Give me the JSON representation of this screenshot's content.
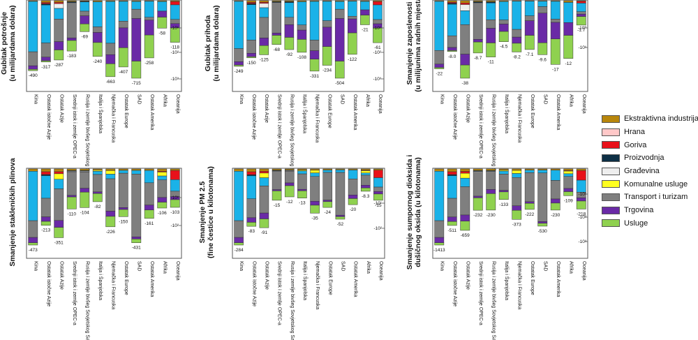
{
  "sector_colors": {
    "Ekstraktivna industrija": "#b8860b",
    "Hrana": "#ffc8c8",
    "Goriva": "#e8111a",
    "Proizvodnja": "#0d2f45",
    "Građevina": "#eeeeee",
    "Komunalne usluge": "#ffff1f",
    "Transport i turizam": "#7f7f7f",
    "Trgovina": "#6a2aa6",
    "Usluge": "#8fd14f",
    "Other": "#1ab2e8"
  },
  "legend": {
    "items": [
      {
        "label": "Ekstraktivna industrija",
        "color": "#b8860b"
      },
      {
        "label": "Hrana",
        "color": "#ffc8c8"
      },
      {
        "label": "Goriva",
        "color": "#e8111a"
      },
      {
        "label": "Proizvodnja",
        "color": "#0d2f45"
      },
      {
        "label": "Građevina",
        "color": "#eeeeee"
      },
      {
        "label": "Komunalne usluge",
        "color": "#ffff1f"
      },
      {
        "label": "Transport i turizam",
        "color": "#7f7f7f"
      },
      {
        "label": "Trgovina",
        "color": "#6a2aa6"
      },
      {
        "label": "Usluge",
        "color": "#8fd14f"
      }
    ]
  },
  "chart_data": [
    {
      "type": "bar",
      "stacked": true,
      "ylabel": "Gubitak potrošnje\n(u milijardama dolara)",
      "ytick_labels": [
        "-10¹",
        "-10²",
        "-10³"
      ],
      "categories": [
        "Kina",
        "Ostatak istočne Azije",
        "Ostatak Azije",
        "Srednji istok i zemlje OPEC-a",
        "Rusija i zemlje bivšeg Sovjetskog Saveza",
        "Italija i Španjolska",
        "Njemačka i Francuska",
        "Ostatak Europe",
        "SAD",
        "Ostatak Amerika",
        "Afrika",
        "Oceanija"
      ],
      "totals": [
        -490,
        -317,
        -287,
        -183,
        -69,
        -240,
        -663,
        -407,
        -715,
        -258,
        -58,
        -118
      ],
      "total_labels": [
        "-490",
        "-317",
        "-287",
        "-183",
        "-69",
        "-240",
        "-663",
        "-407",
        "-715",
        "-258",
        "-58",
        "-118"
      ]
    },
    {
      "type": "bar",
      "stacked": true,
      "ylabel": "Gubitak prihoda\n(u milijardama dolara)",
      "ytick_labels": [
        "-10¹",
        "-10²",
        "-10³"
      ],
      "categories": [
        "Kina",
        "Ostatak istočne Azije",
        "Ostatak Azije",
        "Srednji istok i zemlje OPEC-a",
        "Rusija i zemlje bivšeg Sovjetskog Saveza",
        "Italija i Španjolska",
        "Njemačka i Francuska",
        "Ostatak Europe",
        "SAD",
        "Ostatak Amerika",
        "Afrika",
        "Oceanija"
      ],
      "totals": [
        -249,
        -150,
        -125,
        -68,
        -92,
        -108,
        -331,
        -234,
        -504,
        -122,
        -21,
        -61
      ],
      "total_labels": [
        "-249",
        "-150",
        "-125",
        "-68",
        "-92",
        "-108",
        "-331",
        "-234",
        "-504",
        "-122",
        "-21",
        "-61"
      ]
    },
    {
      "type": "bar",
      "stacked": true,
      "ylabel": "Smanjenje zaposlenosti\n(u milijunima radnih mjesta)",
      "ytick_labels": [
        "-10⁰",
        "-10¹"
      ],
      "categories": [
        "Kina",
        "Ostatak istočne Azije",
        "Ostatak Azije",
        "Srednji istok i zemlje OPEC-a",
        "Rusija i zemlje bivšeg Sovjetskog Saveza",
        "Italija i Španjolska",
        "Njemačka i Francuska",
        "Ostatak Europe",
        "SAD",
        "Ostatak Amerika",
        "Afrika",
        "Oceanija"
      ],
      "totals": [
        -22,
        -8.0,
        -38,
        -8.7,
        -11,
        -4.5,
        -8.2,
        -7.1,
        -9.6,
        -17,
        -12,
        -1.7
      ],
      "total_labels": [
        "-22",
        "-8.0",
        "-38",
        "-8.7",
        "-11",
        "-4.5",
        "-8.2",
        "-7.1",
        "-9.6",
        "-17",
        "-12",
        "-1.7"
      ]
    },
    {
      "type": "bar",
      "stacked": true,
      "ylabel": "Smanjenje stakleničkih plinova",
      "ytick_labels": [
        "-10¹",
        "-10²"
      ],
      "categories": [
        "Kina",
        "Ostatak istočne Azije",
        "Ostatak Azije",
        "Srednji istok i zemlje OPEC-a",
        "Rusija i zemlje bivšeg Sovjetskog Saveza",
        "Italija i Španjolska",
        "Njemačka i Francuska",
        "Ostatak Europe",
        "SAD",
        "Ostatak Amerika",
        "Afrika",
        "Oceanija"
      ],
      "totals": [
        -473,
        -213,
        -351,
        -110,
        -104,
        -82,
        -226,
        -150,
        -431,
        -161,
        -106,
        -103
      ],
      "total_labels": [
        "-473",
        "-213",
        "-351",
        "-110",
        "-104",
        "-82",
        "-226",
        "-150",
        "-431",
        "-161",
        "-106",
        "-103"
      ]
    },
    {
      "type": "bar",
      "stacked": true,
      "ylabel": "Smanjenje PM 2.5\n(fine čestice u kilotonama)",
      "ytick_labels": [
        "-10¹",
        "-10²"
      ],
      "categories": [
        "Kina",
        "Ostatak istočne Azije",
        "Ostatak Azije",
        "Srednji istok i zemlje OPEC-a",
        "Rusija i zemlje bivšeg Sovjetskog Saveza",
        "Italija i Španjolska",
        "Njemačka i Francuska",
        "Ostatak Europe",
        "SAD",
        "Ostatak Amerika",
        "Afrika",
        "Oceanija"
      ],
      "totals": [
        -284,
        -83,
        -91,
        -15,
        -12,
        -13,
        -35,
        -24,
        -52,
        -20,
        -8.3,
        -15
      ],
      "total_labels": [
        "-284",
        "-83",
        "-91",
        "-15",
        "-12",
        "-13",
        "-35",
        "-24",
        "-52",
        "-20",
        "-8.3",
        "-15"
      ]
    },
    {
      "type": "bar",
      "stacked": true,
      "ylabel": "Smanjenje sumpornog dioksida i\ndušičnog oksida (u kilotonama)",
      "ytick_labels": [
        "-10¹",
        "-10²",
        "-10³"
      ],
      "categories": [
        "Kina",
        "Ostatak istočne Azije",
        "Ostatak Azije",
        "Srednji istok i zemlje OPEC-a",
        "Rusija i zemlje bivšeg Sovjetskog Saveza",
        "Italija i Španjolska",
        "Njemačka i Francuska",
        "Ostatak Europe",
        "SAD",
        "Ostatak Amerika",
        "Afrika",
        "Oceanija"
      ],
      "totals": [
        -1413,
        -511,
        -659,
        -232,
        -230,
        -133,
        -373,
        -222,
        -530,
        -230,
        -109,
        -218
      ],
      "total_labels": [
        "-1413",
        "-511",
        "-659",
        "-232",
        "-230",
        "-133",
        "-373",
        "-222",
        "-530",
        "-230",
        "-109",
        "-218"
      ]
    }
  ]
}
